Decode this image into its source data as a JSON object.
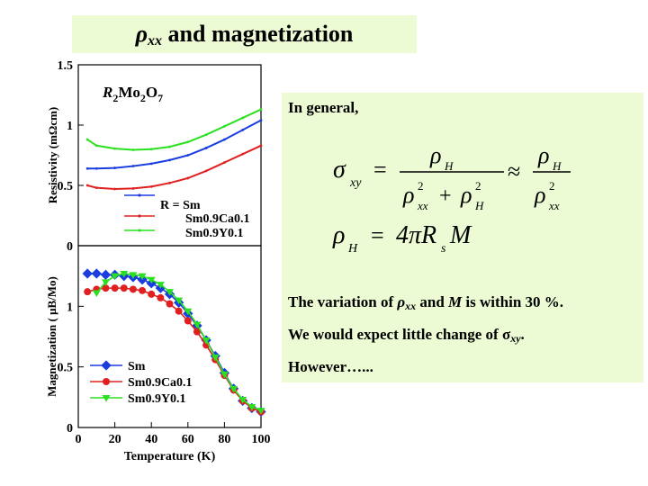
{
  "title": {
    "rho": "ρ",
    "sub": "xx",
    "rest": " and magnetization"
  },
  "note": {
    "general": "In general,",
    "variation_pre": "The variation of ",
    "variation_rho": "ρ",
    "variation_sub": "xx",
    "variation_mid": " and ",
    "variation_m": "M",
    "variation_post": " is within 30 %.",
    "expect_pre": "We would expect little change of ",
    "expect_sigma": "σ",
    "expect_sub": "xy",
    "expect_post": ".",
    "however": "However…...",
    "eq1": {
      "lhs": "σ",
      "lhs_sub": "xy",
      "eq": "=",
      "num": "ρ",
      "num_sub": "H",
      "den": "ρ",
      "den_sub": "xx",
      "den_sup": "2",
      "plus": "+",
      "den2": "ρ",
      "den2_sub": "H",
      "den2_sup": "2",
      "approx": "≈",
      "rnum": "ρ",
      "rnum_sub": "H",
      "rden": "ρ",
      "rden_sub": "xx",
      "rden_sup": "2"
    },
    "eq2": {
      "lhs": "ρ",
      "lhs_sub": "H",
      "eq": "=",
      "rhs": "4πR",
      "rhs_sub": "s",
      "rhs_end": "M"
    }
  },
  "colors": {
    "sm": "#1a3de0",
    "ca": "#e02020",
    "y": "#2be020",
    "banner": "#ecfbd3"
  },
  "chart_data": [
    {
      "type": "line",
      "ylabel": "Resistivity (mΩcm)",
      "xlabel": "",
      "ylim": [
        0,
        1.5
      ],
      "xlim": [
        0,
        100
      ],
      "yticks": [
        "1.5",
        "1",
        "0.5",
        "0"
      ],
      "compound_label": {
        "pre": "R",
        "s1": "2",
        "mid": "Mo",
        "s2": "2",
        "mid2": "O",
        "s3": "7"
      },
      "legend_title": "R = Sm",
      "legend": [
        "R = Sm",
        "Sm0.9Ca0.1",
        "Sm0.9Y0.1"
      ],
      "series": [
        {
          "name": "R = Sm",
          "color": "sm",
          "x": [
            5,
            10,
            20,
            30,
            40,
            50,
            60,
            70,
            80,
            90,
            100
          ],
          "y": [
            0.64,
            0.64,
            0.645,
            0.66,
            0.68,
            0.71,
            0.75,
            0.81,
            0.88,
            0.96,
            1.04
          ]
        },
        {
          "name": "Sm0.9Ca0.1",
          "color": "ca",
          "x": [
            5,
            10,
            20,
            30,
            40,
            50,
            60,
            70,
            80,
            90,
            100
          ],
          "y": [
            0.5,
            0.48,
            0.47,
            0.475,
            0.49,
            0.52,
            0.56,
            0.62,
            0.69,
            0.76,
            0.83
          ]
        },
        {
          "name": "Sm0.9Y0.1",
          "color": "y",
          "x": [
            5,
            10,
            20,
            30,
            40,
            50,
            60,
            70,
            80,
            90,
            100
          ],
          "y": [
            0.88,
            0.83,
            0.805,
            0.795,
            0.8,
            0.82,
            0.86,
            0.92,
            0.99,
            1.06,
            1.13
          ]
        }
      ]
    },
    {
      "type": "line",
      "ylabel": "Magnetization ( μB/Mo)",
      "xlabel": "Temperature (K)",
      "ylim": [
        0,
        1.5
      ],
      "xlim": [
        0,
        100
      ],
      "xticks": [
        "0",
        "20",
        "40",
        "60",
        "80",
        "100"
      ],
      "yticks": [
        "1",
        "0.5",
        "0"
      ],
      "legend": [
        "Sm",
        "Sm0.9Ca0.1",
        "Sm0.9Y0.1"
      ],
      "series": [
        {
          "name": "Sm",
          "color": "sm",
          "x": [
            5,
            10,
            15,
            20,
            25,
            30,
            35,
            40,
            45,
            50,
            55,
            60,
            65,
            70,
            75,
            80,
            85,
            90,
            95,
            100
          ],
          "y": [
            1.27,
            1.27,
            1.26,
            1.26,
            1.25,
            1.24,
            1.22,
            1.19,
            1.15,
            1.1,
            1.03,
            0.94,
            0.84,
            0.72,
            0.59,
            0.45,
            0.32,
            0.22,
            0.16,
            0.13
          ]
        },
        {
          "name": "Sm0.9Ca0.1",
          "color": "ca",
          "x": [
            5,
            10,
            15,
            20,
            25,
            30,
            35,
            40,
            45,
            50,
            55,
            60,
            65,
            70,
            75,
            80,
            85,
            90,
            95,
            100
          ],
          "y": [
            1.12,
            1.14,
            1.15,
            1.15,
            1.15,
            1.14,
            1.13,
            1.1,
            1.07,
            1.02,
            0.96,
            0.88,
            0.79,
            0.68,
            0.56,
            0.43,
            0.31,
            0.22,
            0.16,
            0.13
          ]
        },
        {
          "name": "Sm0.9Y0.1",
          "color": "y",
          "x": [
            10,
            15,
            20,
            25,
            30,
            35,
            40,
            45,
            50,
            55,
            60,
            65,
            70,
            75,
            80,
            85,
            90,
            95,
            100
          ],
          "y": [
            1.11,
            1.2,
            1.25,
            1.27,
            1.26,
            1.25,
            1.22,
            1.18,
            1.12,
            1.05,
            0.96,
            0.85,
            0.72,
            0.58,
            0.44,
            0.32,
            0.23,
            0.17,
            0.14
          ]
        }
      ]
    }
  ]
}
